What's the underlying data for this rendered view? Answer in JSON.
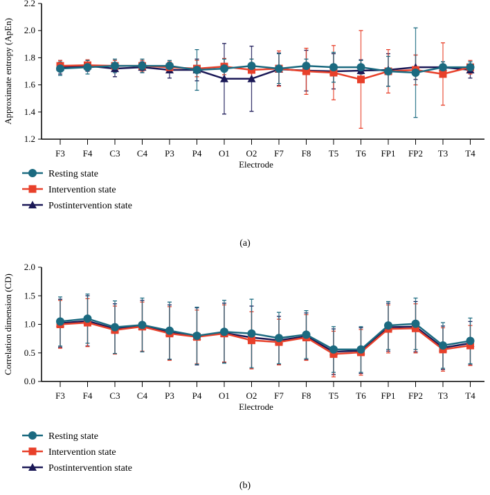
{
  "colors": {
    "rest": "#1b6a80",
    "intervention": "#e8402a",
    "post": "#1a1856"
  },
  "chart_data": [
    {
      "type": "line",
      "panel_label": "(a)",
      "xlabel": "Electrode",
      "ylabel": "Approximate entropy (ApEn)",
      "ylim": [
        1.2,
        2.2
      ],
      "yticks": [
        "1.2",
        "1.4",
        "1.6",
        "1.8",
        "2.0",
        "2.2"
      ],
      "error_bars": true,
      "grid": false,
      "legend": "bottom-left",
      "categories": [
        "F3",
        "F4",
        "C3",
        "C4",
        "P3",
        "P4",
        "O1",
        "O2",
        "F7",
        "F8",
        "T5",
        "T6",
        "FP1",
        "FP2",
        "T3",
        "T4"
      ],
      "series": [
        {
          "name": "Resting state",
          "marker": "circle",
          "values": [
            1.72,
            1.73,
            1.74,
            1.74,
            1.74,
            1.71,
            1.72,
            1.74,
            1.72,
            1.74,
            1.73,
            1.73,
            1.7,
            1.69,
            1.73,
            1.73
          ],
          "errors": [
            0.05,
            0.05,
            0.05,
            0.05,
            0.04,
            0.15,
            0.07,
            0.05,
            0.11,
            0.05,
            0.11,
            0.05,
            0.11,
            0.33,
            0.04,
            0.04
          ]
        },
        {
          "name": "Intervention state",
          "marker": "square",
          "values": [
            1.74,
            1.745,
            1.74,
            1.74,
            1.73,
            1.72,
            1.735,
            1.71,
            1.72,
            1.7,
            1.69,
            1.64,
            1.7,
            1.71,
            1.68,
            1.73
          ],
          "errors": [
            0.04,
            0.04,
            0.04,
            0.04,
            0.04,
            0.06,
            0.06,
            0.08,
            0.13,
            0.17,
            0.2,
            0.36,
            0.16,
            0.11,
            0.23,
            0.05
          ]
        },
        {
          "name": "Postintervention state",
          "marker": "triangle",
          "values": [
            1.73,
            1.74,
            1.72,
            1.73,
            1.71,
            1.71,
            1.645,
            1.645,
            1.715,
            1.705,
            1.7,
            1.705,
            1.71,
            1.73,
            1.73,
            1.71
          ],
          "errors": [
            0.05,
            0.04,
            0.06,
            0.04,
            0.06,
            0.08,
            0.26,
            0.24,
            0.12,
            0.15,
            0.13,
            0.08,
            0.12,
            0.09,
            0.04,
            0.06
          ]
        }
      ]
    },
    {
      "type": "line",
      "panel_label": "(b)",
      "xlabel": "Electrode",
      "ylabel": "Correlation dimension (CD)",
      "ylim": [
        0,
        2.0
      ],
      "yticks": [
        "0.0",
        "0.5",
        "1.0",
        "1.5",
        "2.0"
      ],
      "error_bars": true,
      "grid": false,
      "legend": "bottom-left",
      "categories": [
        "F3",
        "F4",
        "C3",
        "C4",
        "P3",
        "P4",
        "O1",
        "O2",
        "F7",
        "F8",
        "T5",
        "T6",
        "FP1",
        "FP2",
        "T3",
        "T4"
      ],
      "series": [
        {
          "name": "Resting state",
          "marker": "circle",
          "values": [
            1.05,
            1.1,
            0.95,
            0.99,
            0.89,
            0.8,
            0.87,
            0.84,
            0.76,
            0.82,
            0.56,
            0.56,
            0.98,
            1.01,
            0.63,
            0.71
          ],
          "errors": [
            0.43,
            0.43,
            0.46,
            0.47,
            0.5,
            0.5,
            0.55,
            0.6,
            0.45,
            0.42,
            0.4,
            0.4,
            0.42,
            0.45,
            0.4,
            0.4
          ]
        },
        {
          "name": "Intervention state",
          "marker": "square",
          "values": [
            1.0,
            1.03,
            0.9,
            0.96,
            0.84,
            0.78,
            0.84,
            0.72,
            0.69,
            0.77,
            0.48,
            0.51,
            0.92,
            0.93,
            0.56,
            0.63
          ],
          "errors": [
            0.42,
            0.42,
            0.42,
            0.43,
            0.47,
            0.47,
            0.5,
            0.5,
            0.4,
            0.4,
            0.4,
            0.4,
            0.42,
            0.43,
            0.38,
            0.35
          ]
        },
        {
          "name": "Postintervention state",
          "marker": "triangle",
          "values": [
            1.02,
            1.06,
            0.92,
            0.97,
            0.86,
            0.79,
            0.85,
            0.77,
            0.72,
            0.79,
            0.52,
            0.54,
            0.95,
            0.96,
            0.59,
            0.67
          ],
          "errors": [
            0.42,
            0.44,
            0.44,
            0.45,
            0.48,
            0.5,
            0.52,
            0.55,
            0.42,
            0.41,
            0.4,
            0.4,
            0.42,
            0.44,
            0.38,
            0.38
          ]
        }
      ]
    }
  ]
}
